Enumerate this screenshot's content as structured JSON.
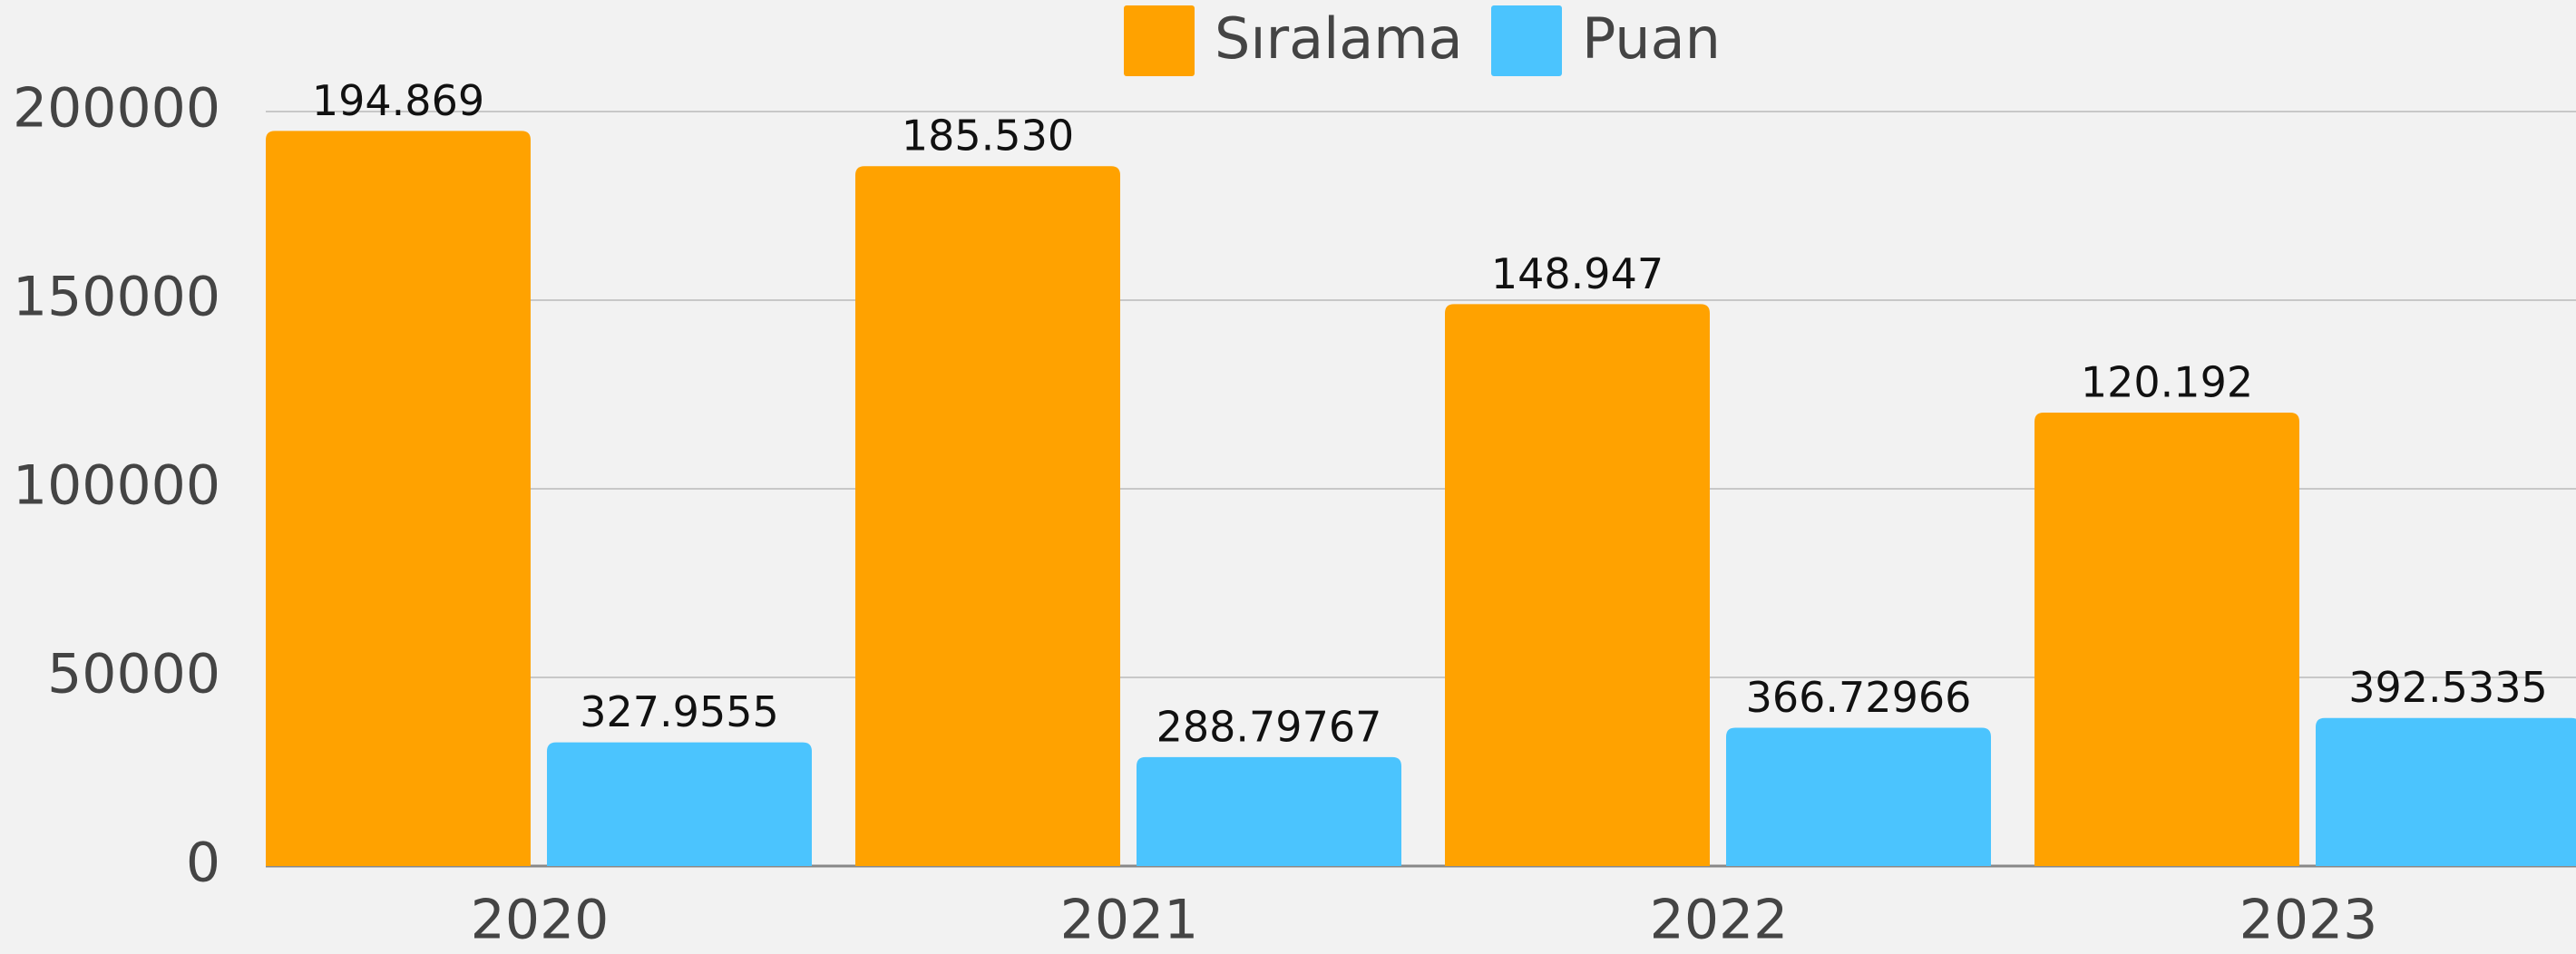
{
  "chart_data": {
    "type": "bar",
    "categories": [
      "2020",
      "2021",
      "2022",
      "2023"
    ],
    "series": [
      {
        "name": "Sıralama",
        "color": "#ffa200",
        "values": [
          194869,
          185530,
          148947,
          120192
        ],
        "value_labels": [
          "194.869",
          "185.530",
          "148.947",
          "120.192"
        ]
      },
      {
        "name": "Puan",
        "color": "#4bc4fe",
        "values": [
          32795.55,
          28879.767,
          36672.966,
          39253.35
        ],
        "value_labels": [
          "327.9555",
          "288.79767",
          "366.72966",
          "392.5335"
        ]
      }
    ],
    "ylim": [
      0,
      200000
    ],
    "yticks": [
      0,
      50000,
      100000,
      150000,
      200000
    ],
    "grid": true,
    "legend": "top"
  }
}
